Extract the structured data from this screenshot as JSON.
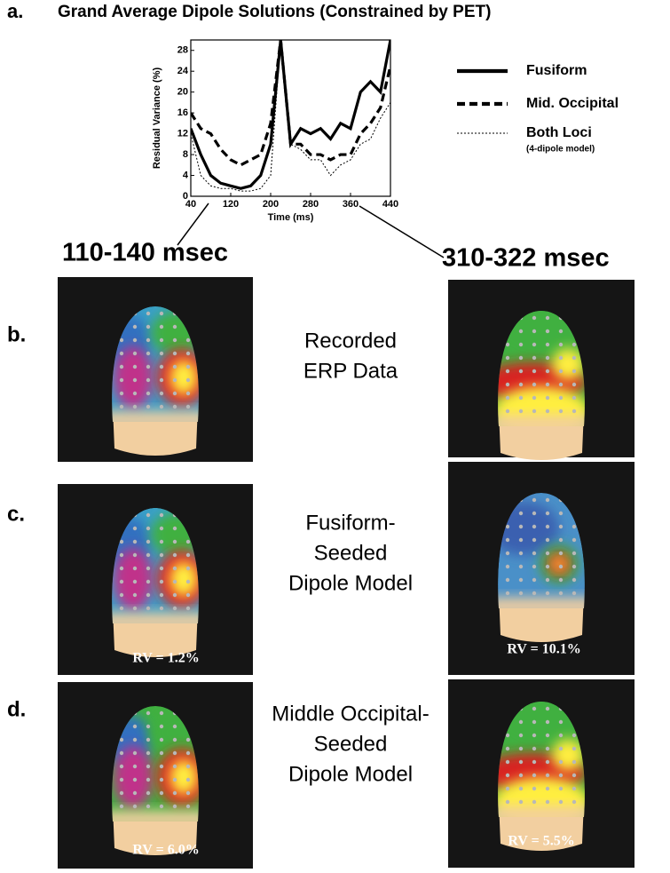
{
  "chart_data": {
    "type": "line",
    "title": "Grand Average Dipole Solutions (Constrained by PET)",
    "x_label": "Time (ms)",
    "y_label": "Residual Variance (%)",
    "x": [
      40,
      60,
      80,
      100,
      120,
      140,
      160,
      180,
      200,
      220,
      240,
      260,
      280,
      300,
      320,
      340,
      360,
      380,
      400,
      420,
      440
    ],
    "series": [
      {
        "name": "Fusiform",
        "color": "#000000",
        "style": "solid",
        "values": [
          13,
          8,
          4,
          2.5,
          2,
          1.5,
          2,
          4,
          10,
          30,
          10,
          13,
          12,
          13,
          11,
          14,
          13,
          20,
          22,
          20,
          30
        ]
      },
      {
        "name": "Mid. Occipital",
        "color": "#000000",
        "style": "dashed",
        "values": [
          16,
          13,
          12,
          9,
          7,
          6,
          7,
          8,
          14,
          30,
          10,
          10,
          8,
          8,
          7,
          8,
          8,
          12,
          14,
          17,
          25
        ]
      },
      {
        "name": "Both Loci",
        "color": "#000000",
        "style": "dotted",
        "values": [
          12,
          4,
          2,
          1.5,
          1.5,
          1,
          1,
          1.5,
          4,
          30,
          10,
          9,
          7,
          7,
          4,
          6,
          7,
          10,
          11,
          15,
          18
        ]
      }
    ],
    "legend_note": "(4-dipole model)",
    "xlim": [
      40,
      440
    ],
    "xticks": [
      40,
      120,
      200,
      280,
      360,
      440
    ],
    "ylim": [
      0,
      30
    ],
    "yticks": [
      0,
      4,
      8,
      12,
      16,
      20,
      24,
      28
    ],
    "grid": false
  },
  "panels": {
    "labels": [
      "a.",
      "b.",
      "c.",
      "d."
    ],
    "times": [
      "110-140 msec",
      "310-322 msec"
    ],
    "rows": [
      [
        "Recorded",
        "ERP Data"
      ],
      [
        "Fusiform-",
        "Seeded",
        "Dipole Model"
      ],
      [
        "Middle Occipital-",
        "Seeded",
        "Dipole Model"
      ]
    ],
    "rv": [
      "RV = 1.2%",
      "RV = 10.1%",
      "RV = 6.0%",
      "RV = 5.5%"
    ]
  }
}
